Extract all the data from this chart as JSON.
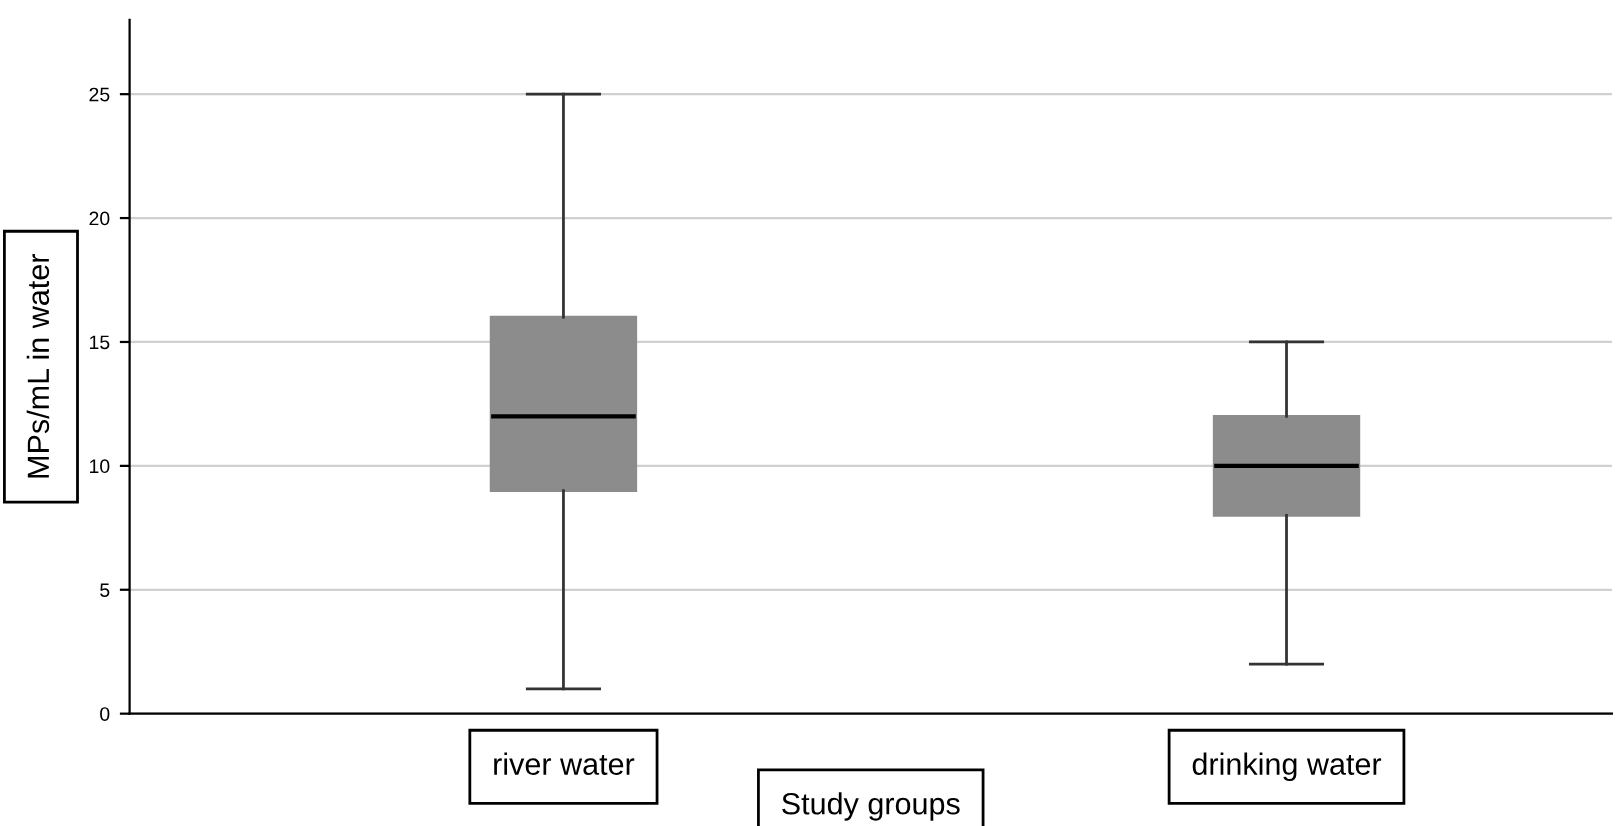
{
  "chart_data": {
    "type": "box",
    "xlabel": "Study groups",
    "ylabel": "MPs/mL in water",
    "categories": [
      "river water",
      "drinking water"
    ],
    "boxes": [
      {
        "low": 1,
        "q1": 9,
        "median": 12,
        "q3": 16,
        "high": 25
      },
      {
        "low": 2,
        "q1": 8,
        "median": 10,
        "q3": 12,
        "high": 15
      }
    ],
    "color": "#8c8c8c",
    "ylim": [
      0,
      28
    ],
    "yticks": [
      0,
      5,
      10,
      15,
      20,
      25
    ],
    "grid": "y"
  }
}
